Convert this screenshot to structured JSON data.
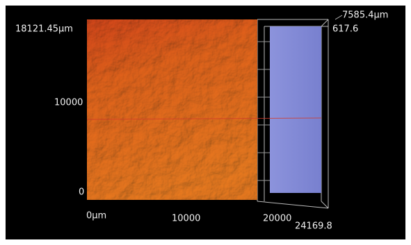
{
  "axes": {
    "y_labels": [
      "18121.45µm",
      "10000",
      "0"
    ],
    "x_labels": [
      "0µm",
      "10000",
      "20000",
      "24169.8"
    ],
    "z_labels": [
      "7585.4µm",
      "617.6"
    ]
  }
}
